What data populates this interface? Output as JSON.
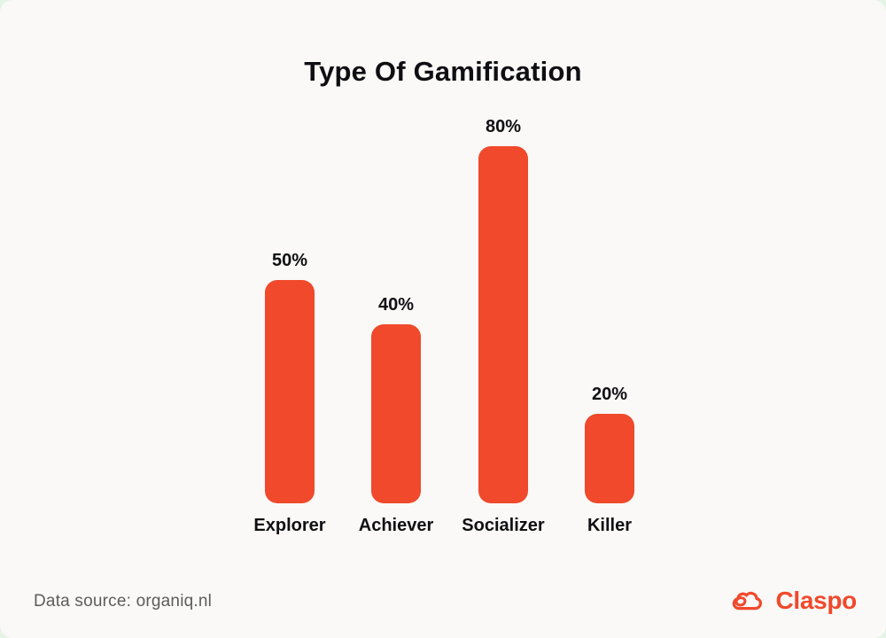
{
  "page": {
    "outer_background": "#E4F5E6",
    "card_background": "#FAF9F7"
  },
  "chart_data": {
    "type": "bar",
    "title": "Type Of Gamification",
    "categories": [
      "Explorer",
      "Achiever",
      "Socializer",
      "Killer"
    ],
    "values": [
      50,
      40,
      80,
      20
    ],
    "value_labels": [
      "50%",
      "40%",
      "80%",
      "20%"
    ],
    "bar_color": "#F0492C",
    "text_color": "#101014",
    "ylim": [
      0,
      100
    ],
    "grid": false,
    "legend": false,
    "axes_shown": false
  },
  "footer": {
    "source": "Data source: organiq.nl",
    "brand": "Claspo",
    "brand_color": "#F0492C",
    "logo_icon": "claspo-cloud-icon"
  }
}
